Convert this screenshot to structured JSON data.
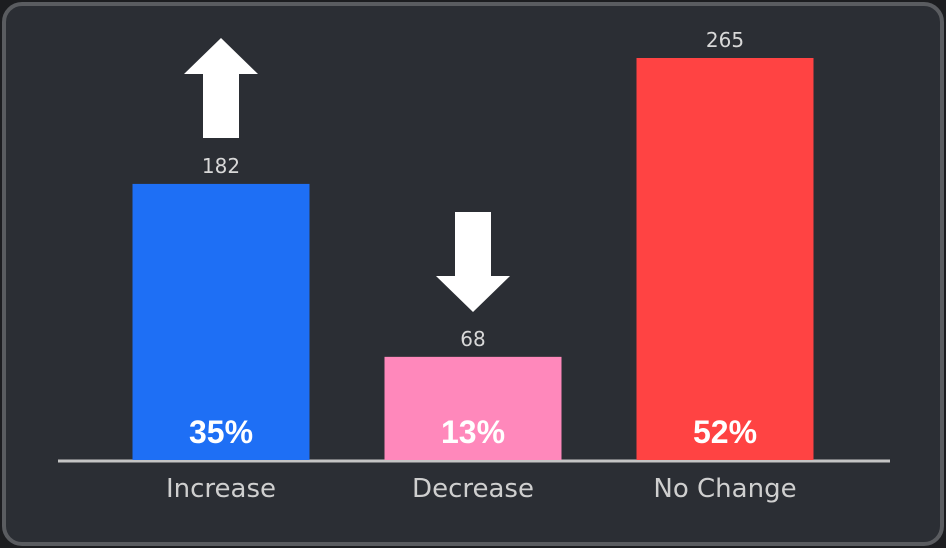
{
  "chart_data": {
    "type": "bar",
    "categories": [
      "Increase",
      "Decrease",
      "No Change"
    ],
    "values": [
      182,
      68,
      265
    ],
    "colors": [
      "#1e6ff5",
      "#ff88bb",
      "#ff4343"
    ],
    "percent_labels": [
      "35%",
      "13%",
      "52%"
    ]
  }
}
